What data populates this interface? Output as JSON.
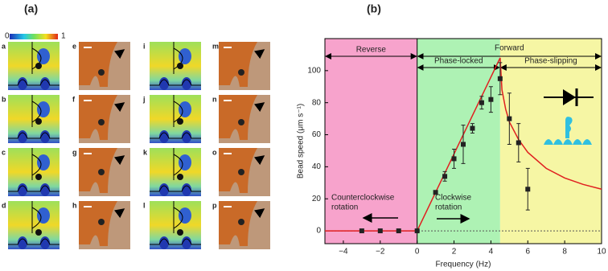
{
  "panel_a": {
    "label": "(a)",
    "colorbar_labels": [
      "0",
      "1"
    ],
    "tiles": [
      "a",
      "b",
      "c",
      "d",
      "e",
      "f",
      "g",
      "h",
      "i",
      "j",
      "k",
      "l",
      "m",
      "n",
      "o",
      "p"
    ]
  },
  "chart_data": {
    "type": "scatter",
    "label": "(b)",
    "x_label": "Frequency (Hz)",
    "y_label": "Bead speed (μm s⁻¹)",
    "xlim": [
      -5,
      10
    ],
    "ylim": [
      -8,
      120
    ],
    "xticks": [
      {
        "value": -4,
        "label": "−4"
      },
      {
        "value": -2,
        "label": "−2"
      },
      0,
      2,
      4,
      6,
      8,
      10
    ],
    "yticks": [
      0,
      20,
      40,
      60,
      80,
      100
    ],
    "regions": [
      {
        "label": "Reverse",
        "range": [
          -5,
          0
        ],
        "color": "#f7a3cc"
      },
      {
        "label": "Phase-locked",
        "range": [
          0,
          4.5
        ],
        "color": "#aef2b4"
      },
      {
        "label": "Phase-slipping",
        "range": [
          4.5,
          10
        ],
        "color": "#f6f6a4"
      }
    ],
    "span_label": "Forward",
    "points": {
      "color": "#222222",
      "x": [
        -3,
        -2,
        -1,
        0,
        1,
        1.5,
        2,
        2.5,
        3,
        3.5,
        4,
        4.5,
        5,
        5.5,
        6
      ],
      "values": [
        0,
        0,
        0,
        0,
        24,
        34,
        45,
        54,
        64,
        80,
        82,
        95,
        70,
        55,
        26
      ],
      "errors": [
        0,
        0,
        0,
        0,
        0,
        3,
        6,
        12,
        3,
        4,
        8,
        10,
        16,
        12,
        13
      ]
    },
    "curve": {
      "color": "#e02020",
      "x": [
        -5,
        0,
        4.5,
        4.6,
        4.8,
        5,
        5.5,
        6,
        7,
        8,
        9,
        10
      ],
      "values": [
        0,
        0,
        108,
        88,
        76,
        68,
        57,
        49,
        39,
        33,
        29,
        26
      ]
    },
    "annotations": {
      "counterclockwise": [
        "Counterclockwise",
        "rotation"
      ],
      "clockwise": [
        "Clockwise",
        "rotation"
      ]
    }
  }
}
